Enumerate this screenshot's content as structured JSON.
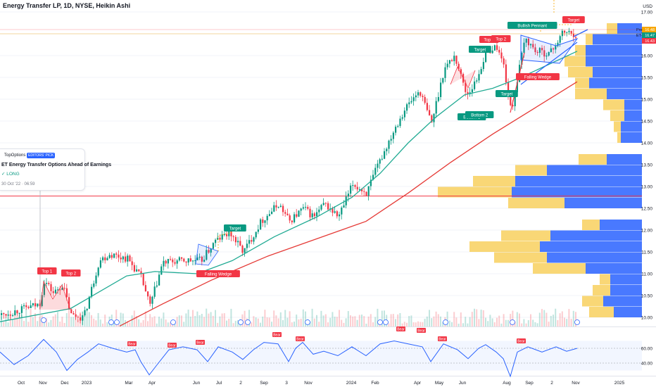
{
  "header": {
    "title": "Energy Transfer LP, 1D, NYSE, Heikin Ashi"
  },
  "currency": "USD",
  "idea_card": {
    "source": "TopOptions",
    "badge": "EDITORS' PICK",
    "title": "ET Energy Transfer Options Ahead of Earnings",
    "direction": "✓ LONG",
    "timestamp": "30 Oct '22 · 06:59"
  },
  "price_labels": [
    {
      "text": "16.48",
      "color": "#f7a600"
    },
    {
      "text": "16.47",
      "color": "#089981"
    },
    {
      "text": "16.43",
      "color": "#f23645"
    }
  ],
  "price_label_prefixes": [
    "Pre",
    "ET"
  ],
  "annotations": [
    {
      "text": "Top 1",
      "color": "#f23645"
    },
    {
      "text": "Top 2",
      "color": "#f23645"
    },
    {
      "text": "Falling Wedge",
      "color": "#f23645"
    },
    {
      "text": "Target",
      "color": "#089981"
    },
    {
      "text": "Top 1",
      "color": "#f23645"
    },
    {
      "text": "Top 2",
      "color": "#f23645"
    },
    {
      "text": "Target",
      "color": "#089981"
    },
    {
      "text": "Bottom 1",
      "color": "#089981"
    },
    {
      "text": "Bottom 2",
      "color": "#089981"
    },
    {
      "text": "Bullish Pennant",
      "color": "#089981"
    },
    {
      "text": "Target",
      "color": "#f23645"
    },
    {
      "text": "Falling Wedge",
      "color": "#f23645"
    },
    {
      "text": "Target",
      "color": "#089981"
    }
  ],
  "rsi_labels": [
    "Bear",
    "Bear",
    "Bear",
    "Bear",
    "Bear",
    "Bear",
    "Bear",
    "Bear",
    "Bear"
  ],
  "colors": {
    "up": "#089981",
    "down": "#f23645",
    "ma50": "#22ab94",
    "ma200": "#e53935",
    "rsi": "#2962ff",
    "vp_up": "#2962ff",
    "vp_down": "#f7c948"
  },
  "chart_data": {
    "type": "candlestick",
    "style": "Heikin Ashi",
    "symbol": "ET",
    "timeframe": "1D",
    "y_axis": {
      "unit": "USD",
      "ticks": [
        10.0,
        10.5,
        11.0,
        11.5,
        12.0,
        12.5,
        13.0,
        13.5,
        14.0,
        14.5,
        15.0,
        15.5,
        16.0,
        16.5,
        17.0
      ],
      "range": [
        9.8,
        17.2
      ]
    },
    "x_axis": {
      "ticks": [
        "Oct",
        "Nov",
        "Dec",
        "2023",
        "Mar",
        "Apr",
        "Jun",
        "Jul",
        "2",
        "Sep",
        "3",
        "Nov",
        "2024",
        "Feb",
        "Apr",
        "May",
        "Jun",
        "Aug",
        "Sep",
        "2",
        "Nov",
        "2025"
      ]
    },
    "price_path": [
      [
        0,
        10.05
      ],
      [
        55,
        10.3
      ],
      [
        62,
        10.85
      ],
      [
        75,
        10.55
      ],
      [
        88,
        10.75
      ],
      [
        100,
        10.05
      ],
      [
        118,
        10.0
      ],
      [
        140,
        11.3
      ],
      [
        155,
        11.45
      ],
      [
        180,
        11.35
      ],
      [
        200,
        10.9
      ],
      [
        212,
        10.25
      ],
      [
        230,
        11.25
      ],
      [
        260,
        11.3
      ],
      [
        285,
        11.3
      ],
      [
        305,
        11.75
      ],
      [
        325,
        11.95
      ],
      [
        345,
        11.5
      ],
      [
        370,
        12.2
      ],
      [
        395,
        12.6
      ],
      [
        410,
        12.2
      ],
      [
        430,
        12.5
      ],
      [
        445,
        12.3
      ],
      [
        460,
        12.6
      ],
      [
        480,
        12.3
      ],
      [
        500,
        13.05
      ],
      [
        520,
        12.85
      ],
      [
        535,
        13.45
      ],
      [
        560,
        14.35
      ],
      [
        575,
        14.8
      ],
      [
        595,
        15.2
      ],
      [
        612,
        14.45
      ],
      [
        630,
        15.7
      ],
      [
        645,
        16.0
      ],
      [
        662,
        15.1
      ],
      [
        675,
        15.4
      ],
      [
        690,
        16.1
      ],
      [
        705,
        16.2
      ],
      [
        715,
        15.75
      ],
      [
        725,
        14.7
      ],
      [
        745,
        16.4
      ],
      [
        760,
        16.1
      ],
      [
        780,
        16.05
      ],
      [
        800,
        16.55
      ],
      [
        820,
        16.47
      ]
    ],
    "moving_averages": [
      {
        "period": 50,
        "points": [
          [
            0,
            9.9
          ],
          [
            100,
            10.2
          ],
          [
            180,
            10.95
          ],
          [
            220,
            11.05
          ],
          [
            280,
            11.0
          ],
          [
            330,
            11.3
          ],
          [
            390,
            11.85
          ],
          [
            450,
            12.3
          ],
          [
            500,
            12.75
          ],
          [
            540,
            13.3
          ],
          [
            580,
            14.0
          ],
          [
            620,
            14.6
          ],
          [
            660,
            15.1
          ],
          [
            700,
            15.25
          ],
          [
            740,
            15.5
          ],
          [
            780,
            15.8
          ],
          [
            820,
            16.1
          ]
        ]
      },
      {
        "period": 200,
        "points": [
          [
            170,
            9.8
          ],
          [
            230,
            10.3
          ],
          [
            300,
            10.85
          ],
          [
            380,
            11.4
          ],
          [
            450,
            11.8
          ],
          [
            520,
            12.2
          ],
          [
            580,
            12.85
          ],
          [
            640,
            13.55
          ],
          [
            700,
            14.2
          ],
          [
            760,
            14.8
          ],
          [
            820,
            15.4
          ]
        ]
      }
    ],
    "horizontal_line": {
      "price": 12.78,
      "color": "#f23645"
    },
    "volume_profile": [
      {
        "price": 16.5,
        "up": 35,
        "down": 15
      },
      {
        "price": 16.25,
        "up": 70,
        "down": 10
      },
      {
        "price": 16.0,
        "up": 80,
        "down": 15
      },
      {
        "price": 15.75,
        "up": 80,
        "down": 30
      },
      {
        "price": 15.5,
        "up": 70,
        "down": 35
      },
      {
        "price": 15.25,
        "up": 75,
        "down": 20
      },
      {
        "price": 15.0,
        "up": 50,
        "down": 45
      },
      {
        "price": 14.75,
        "up": 25,
        "down": 30
      },
      {
        "price": 14.5,
        "up": 25,
        "down": 20
      },
      {
        "price": 14.25,
        "up": 30,
        "down": 10
      },
      {
        "price": 14.0,
        "up": 30,
        "down": 5
      },
      {
        "price": 13.5,
        "up": 50,
        "down": 40
      },
      {
        "price": 13.25,
        "up": 135,
        "down": 45
      },
      {
        "price": 13.0,
        "up": 180,
        "down": 60
      },
      {
        "price": 12.75,
        "up": 185,
        "down": 105
      },
      {
        "price": 12.5,
        "up": 110,
        "down": 80
      },
      {
        "price": 12.0,
        "up": 60,
        "down": 25
      },
      {
        "price": 11.75,
        "up": 130,
        "down": 70
      },
      {
        "price": 11.5,
        "up": 145,
        "down": 100
      },
      {
        "price": 11.25,
        "up": 135,
        "down": 75
      },
      {
        "price": 11.0,
        "up": 80,
        "down": 75
      },
      {
        "price": 10.75,
        "up": 45,
        "down": 15
      },
      {
        "price": 10.5,
        "up": 45,
        "down": 25
      },
      {
        "price": 10.25,
        "up": 55,
        "down": 30
      },
      {
        "price": 10.0,
        "up": 40,
        "down": 35
      }
    ],
    "rsi": {
      "ticks": [
        40.0,
        60.0
      ],
      "points": [
        [
          0,
          55
        ],
        [
          20,
          38
        ],
        [
          40,
          50
        ],
        [
          62,
          72
        ],
        [
          80,
          55
        ],
        [
          95,
          30
        ],
        [
          110,
          45
        ],
        [
          125,
          55
        ],
        [
          140,
          66
        ],
        [
          160,
          60
        ],
        [
          180,
          55
        ],
        [
          192,
          58
        ],
        [
          200,
          42
        ],
        [
          212,
          24
        ],
        [
          225,
          40
        ],
        [
          240,
          58
        ],
        [
          260,
          62
        ],
        [
          280,
          58
        ],
        [
          295,
          42
        ],
        [
          310,
          62
        ],
        [
          330,
          55
        ],
        [
          345,
          45
        ],
        [
          360,
          58
        ],
        [
          375,
          68
        ],
        [
          395,
          66
        ],
        [
          410,
          42
        ],
        [
          420,
          60
        ],
        [
          430,
          68
        ],
        [
          445,
          52
        ],
        [
          460,
          56
        ],
        [
          480,
          50
        ],
        [
          500,
          62
        ],
        [
          520,
          50
        ],
        [
          540,
          66
        ],
        [
          560,
          70
        ],
        [
          580,
          66
        ],
        [
          600,
          62
        ],
        [
          612,
          42
        ],
        [
          630,
          66
        ],
        [
          650,
          58
        ],
        [
          665,
          46
        ],
        [
          680,
          60
        ],
        [
          690,
          65
        ],
        [
          705,
          55
        ],
        [
          715,
          46
        ],
        [
          725,
          22
        ],
        [
          735,
          55
        ],
        [
          750,
          62
        ],
        [
          770,
          55
        ],
        [
          790,
          62
        ],
        [
          805,
          56
        ],
        [
          820,
          60
        ]
      ]
    }
  }
}
